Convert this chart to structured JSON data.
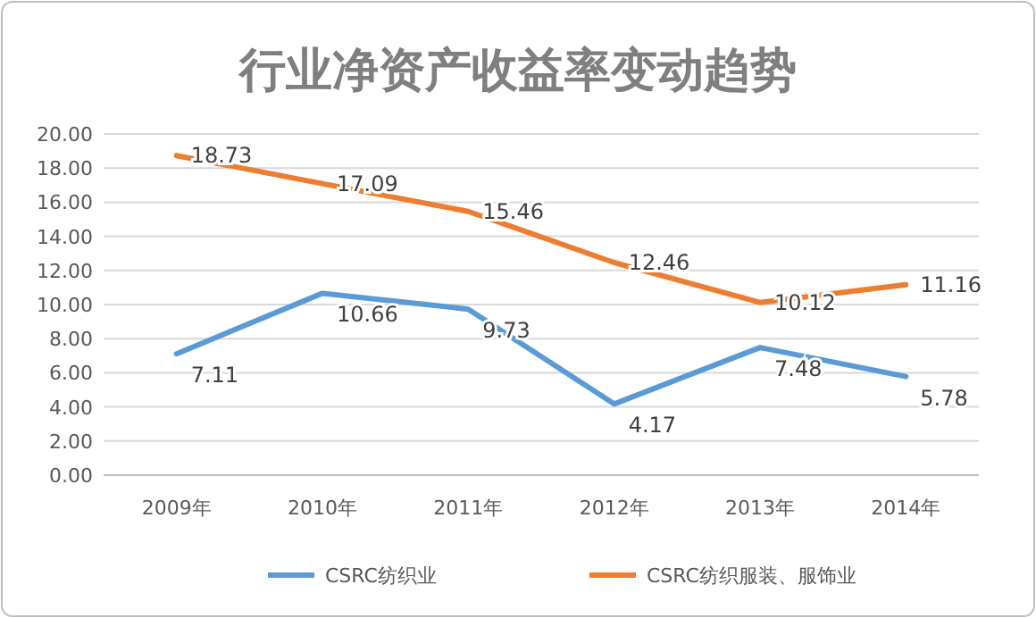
{
  "chart_data": {
    "type": "line",
    "title": "行业净资产收益率变动趋势",
    "categories": [
      "2009年",
      "2010年",
      "2011年",
      "2012年",
      "2013年",
      "2014年"
    ],
    "series": [
      {
        "name": "CSRC纺织业",
        "color": "#5b9bd5",
        "values": [
          7.11,
          10.66,
          9.73,
          4.17,
          7.48,
          5.78
        ]
      },
      {
        "name": "CSRC纺织服装、服饰业",
        "color": "#ed7d31",
        "values": [
          18.73,
          17.09,
          15.46,
          12.46,
          10.12,
          11.16
        ]
      }
    ],
    "ylim": [
      0,
      20
    ],
    "yticks": [
      {
        "value": 0,
        "label": "0.00"
      },
      {
        "value": 2,
        "label": "2.00"
      },
      {
        "value": 4,
        "label": "4.00"
      },
      {
        "value": 6,
        "label": "6.00"
      },
      {
        "value": 8,
        "label": "8.00"
      },
      {
        "value": 10,
        "label": "10.00"
      },
      {
        "value": 12,
        "label": "12.00"
      },
      {
        "value": 14,
        "label": "14.00"
      },
      {
        "value": 16,
        "label": "16.00"
      },
      {
        "value": 18,
        "label": "18.00"
      },
      {
        "value": 20,
        "label": "20.00"
      }
    ],
    "grid": "y",
    "legend": "bottom",
    "data_labels": true,
    "marker": "none",
    "line_style": "solid"
  }
}
